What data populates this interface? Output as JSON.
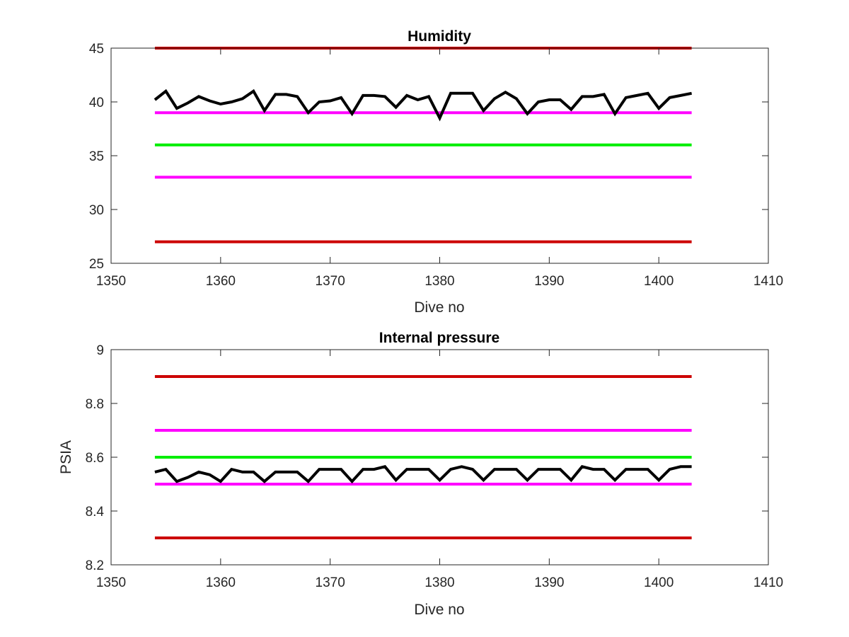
{
  "chart_data": [
    {
      "type": "line",
      "title": "Humidity",
      "xlabel": "Dive no",
      "ylabel": "",
      "xlim": [
        1350,
        1410
      ],
      "ylim": [
        25,
        45
      ],
      "xticks": [
        1350,
        1360,
        1370,
        1380,
        1390,
        1400,
        1410
      ],
      "yticks": [
        25,
        30,
        35,
        40,
        45
      ],
      "grid": false,
      "series": [
        {
          "color": "#cc0000",
          "width": 4,
          "x": [
            1354,
            1403
          ],
          "y": [
            45,
            45
          ]
        },
        {
          "color": "#ff00ff",
          "width": 4,
          "x": [
            1354,
            1403
          ],
          "y": [
            39,
            39
          ]
        },
        {
          "color": "#00ee00",
          "width": 4,
          "x": [
            1354,
            1403
          ],
          "y": [
            36,
            36
          ]
        },
        {
          "color": "#ff00ff",
          "width": 4,
          "x": [
            1354,
            1403
          ],
          "y": [
            33,
            33
          ]
        },
        {
          "color": "#cc0000",
          "width": 4,
          "x": [
            1354,
            1403
          ],
          "y": [
            27,
            27
          ]
        },
        {
          "color": "#000000",
          "width": 4,
          "x": [
            1354,
            1355,
            1356,
            1357,
            1358,
            1359,
            1360,
            1361,
            1362,
            1363,
            1364,
            1365,
            1366,
            1367,
            1368,
            1369,
            1370,
            1371,
            1372,
            1373,
            1374,
            1375,
            1376,
            1377,
            1378,
            1379,
            1380,
            1381,
            1382,
            1383,
            1384,
            1385,
            1386,
            1387,
            1388,
            1389,
            1390,
            1391,
            1392,
            1393,
            1394,
            1395,
            1396,
            1397,
            1398,
            1399,
            1400,
            1401,
            1402,
            1403
          ],
          "y": [
            40.2,
            41.0,
            39.4,
            39.9,
            40.5,
            40.1,
            39.8,
            40.0,
            40.3,
            41.0,
            39.2,
            40.7,
            40.7,
            40.5,
            39.0,
            40.0,
            40.1,
            40.4,
            38.9,
            40.6,
            40.6,
            40.5,
            39.5,
            40.6,
            40.2,
            40.5,
            38.5,
            40.8,
            40.8,
            40.8,
            39.2,
            40.3,
            40.9,
            40.3,
            38.9,
            40.0,
            40.2,
            40.2,
            39.3,
            40.5,
            40.5,
            40.7,
            38.9,
            40.4,
            40.6,
            40.8,
            39.4,
            40.4,
            40.6,
            40.8
          ]
        }
      ]
    },
    {
      "type": "line",
      "title": "Internal pressure",
      "xlabel": "Dive no",
      "ylabel": "PSIA",
      "xlim": [
        1350,
        1410
      ],
      "ylim": [
        8.2,
        9.0
      ],
      "xticks": [
        1350,
        1360,
        1370,
        1380,
        1390,
        1400,
        1410
      ],
      "yticks": [
        "8.2",
        "8.4",
        "8.6",
        "8.8",
        "9"
      ],
      "grid": false,
      "series": [
        {
          "color": "#cc0000",
          "width": 4,
          "x": [
            1354,
            1403
          ],
          "y": [
            8.9,
            8.9
          ]
        },
        {
          "color": "#ff00ff",
          "width": 4,
          "x": [
            1354,
            1403
          ],
          "y": [
            8.7,
            8.7
          ]
        },
        {
          "color": "#00ee00",
          "width": 4,
          "x": [
            1354,
            1403
          ],
          "y": [
            8.6,
            8.6
          ]
        },
        {
          "color": "#ff00ff",
          "width": 4,
          "x": [
            1354,
            1403
          ],
          "y": [
            8.5,
            8.5
          ]
        },
        {
          "color": "#cc0000",
          "width": 4,
          "x": [
            1354,
            1403
          ],
          "y": [
            8.3,
            8.3
          ]
        },
        {
          "color": "#000000",
          "width": 4,
          "x": [
            1354,
            1355,
            1356,
            1357,
            1358,
            1359,
            1360,
            1361,
            1362,
            1363,
            1364,
            1365,
            1366,
            1367,
            1368,
            1369,
            1370,
            1371,
            1372,
            1373,
            1374,
            1375,
            1376,
            1377,
            1378,
            1379,
            1380,
            1381,
            1382,
            1383,
            1384,
            1385,
            1386,
            1387,
            1388,
            1389,
            1390,
            1391,
            1392,
            1393,
            1394,
            1395,
            1396,
            1397,
            1398,
            1399,
            1400,
            1401,
            1402,
            1403
          ],
          "y": [
            8.545,
            8.555,
            8.51,
            8.525,
            8.545,
            8.535,
            8.51,
            8.555,
            8.545,
            8.545,
            8.51,
            8.545,
            8.545,
            8.545,
            8.51,
            8.555,
            8.555,
            8.555,
            8.51,
            8.555,
            8.555,
            8.565,
            8.515,
            8.555,
            8.555,
            8.555,
            8.515,
            8.555,
            8.565,
            8.555,
            8.515,
            8.555,
            8.555,
            8.555,
            8.515,
            8.555,
            8.555,
            8.555,
            8.515,
            8.565,
            8.555,
            8.555,
            8.515,
            8.555,
            8.555,
            8.555,
            8.515,
            8.555,
            8.565,
            8.565
          ]
        }
      ]
    }
  ]
}
